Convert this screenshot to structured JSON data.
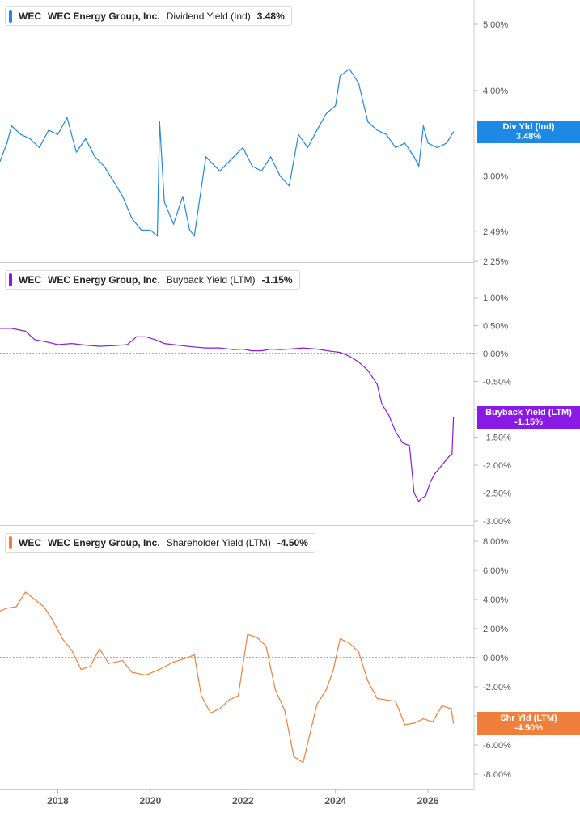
{
  "colors": {
    "dividend": "#1e88e5",
    "buyback": "#8a19e6",
    "shareholder": "#f07f3c",
    "grid": "#e6e6e6",
    "axis_text": "#555555"
  },
  "chart_data": [
    {
      "type": "line",
      "legend": {
        "ticker": "WEC",
        "name": "WEC Energy Group, Inc.",
        "metric": "Dividend Yield (Ind)",
        "value": "3.48%"
      },
      "tag": {
        "label": "Div Yld (Ind)",
        "value": "3.48%"
      },
      "y_ticks": [
        "5.00%",
        "4.00%",
        "3.00%",
        "2.49%",
        "2.25%"
      ],
      "y_tick_values": [
        5.0,
        4.0,
        3.0,
        2.49,
        2.25
      ],
      "scale": "log",
      "ylim": [
        2.25,
        5.5
      ],
      "xlim": [
        2016.75,
        2026.75
      ],
      "series": [
        {
          "x": [
            2016.75,
            2016.9,
            2017.0,
            2017.2,
            2017.4,
            2017.6,
            2017.8,
            2018.0,
            2018.2,
            2018.4,
            2018.6,
            2018.8,
            2019.0,
            2019.2,
            2019.4,
            2019.6,
            2019.8,
            2020.0,
            2020.15,
            2020.2,
            2020.3,
            2020.5,
            2020.7,
            2020.85,
            2020.95,
            2021.2,
            2021.5,
            2021.8,
            2022.0,
            2022.2,
            2022.4,
            2022.6,
            2022.8,
            2023.0,
            2023.2,
            2023.4,
            2023.6,
            2023.8,
            2024.0,
            2024.1,
            2024.3,
            2024.5,
            2024.7,
            2024.9,
            2025.1,
            2025.3,
            2025.5,
            2025.7,
            2025.8,
            2025.9,
            2026.0,
            2026.2,
            2026.4,
            2026.55
          ],
          "y": [
            3.15,
            3.35,
            3.55,
            3.45,
            3.4,
            3.3,
            3.5,
            3.45,
            3.65,
            3.25,
            3.4,
            3.2,
            3.1,
            2.95,
            2.8,
            2.6,
            2.5,
            2.5,
            2.45,
            3.6,
            2.75,
            2.55,
            2.8,
            2.5,
            2.45,
            3.2,
            3.05,
            3.2,
            3.3,
            3.1,
            3.05,
            3.2,
            3.0,
            2.9,
            3.45,
            3.3,
            3.5,
            3.7,
            3.8,
            4.2,
            4.3,
            4.1,
            3.6,
            3.5,
            3.45,
            3.3,
            3.35,
            3.2,
            3.1,
            3.55,
            3.35,
            3.3,
            3.35,
            3.48
          ]
        }
      ]
    },
    {
      "type": "line",
      "legend": {
        "ticker": "WEC",
        "name": "WEC Energy Group, Inc.",
        "metric": "Buyback Yield (LTM)",
        "value": "-1.15%"
      },
      "tag": {
        "label": "Buyback Yield (LTM)",
        "value": "-1.15%"
      },
      "y_ticks": [
        "1.00%",
        "0.50%",
        "0.00%",
        "-0.50%",
        "-1.00%",
        "-1.50%",
        "-2.00%",
        "-2.50%",
        "-3.00%"
      ],
      "y_tick_values": [
        1.0,
        0.5,
        0.0,
        -0.5,
        -1.0,
        -1.5,
        -2.0,
        -2.5,
        -3.0
      ],
      "ylim": [
        -3.0,
        1.0
      ],
      "xlim": [
        2016.75,
        2026.75
      ],
      "series": [
        {
          "x": [
            2016.75,
            2017.0,
            2017.3,
            2017.5,
            2017.8,
            2018.0,
            2018.3,
            2018.6,
            2018.9,
            2019.2,
            2019.5,
            2019.7,
            2019.9,
            2020.1,
            2020.3,
            2020.6,
            2020.9,
            2021.2,
            2021.5,
            2021.8,
            2022.0,
            2022.2,
            2022.4,
            2022.6,
            2022.8,
            2023.0,
            2023.3,
            2023.6,
            2023.9,
            2024.1,
            2024.3,
            2024.5,
            2024.7,
            2024.9,
            2025.0,
            2025.15,
            2025.3,
            2025.45,
            2025.6,
            2025.7,
            2025.8,
            2025.85,
            2025.95,
            2026.05,
            2026.15,
            2026.3,
            2026.45,
            2026.52,
            2026.55
          ],
          "y": [
            0.45,
            0.45,
            0.4,
            0.25,
            0.2,
            0.16,
            0.18,
            0.15,
            0.13,
            0.14,
            0.16,
            0.3,
            0.3,
            0.25,
            0.18,
            0.15,
            0.12,
            0.1,
            0.1,
            0.07,
            0.08,
            0.05,
            0.05,
            0.08,
            0.07,
            0.08,
            0.1,
            0.08,
            0.04,
            0.02,
            -0.05,
            -0.15,
            -0.3,
            -0.55,
            -0.9,
            -1.1,
            -1.4,
            -1.6,
            -1.65,
            -2.5,
            -2.65,
            -2.6,
            -2.55,
            -2.3,
            -2.15,
            -2.0,
            -1.85,
            -1.8,
            -1.15
          ]
        }
      ]
    },
    {
      "type": "line",
      "legend": {
        "ticker": "WEC",
        "name": "WEC Energy Group, Inc.",
        "metric": "Shareholder Yield (LTM)",
        "value": "-4.50%"
      },
      "tag": {
        "label": "Shr Yld (LTM)",
        "value": "-4.50%"
      },
      "y_ticks": [
        "8.00%",
        "6.00%",
        "4.00%",
        "2.00%",
        "0.00%",
        "-2.00%",
        "-4.00%",
        "-6.00%",
        "-8.00%"
      ],
      "y_tick_values": [
        8.0,
        6.0,
        4.0,
        2.0,
        0.0,
        -2.0,
        -4.0,
        -6.0,
        -8.0
      ],
      "ylim": [
        -8.0,
        8.0
      ],
      "xlim": [
        2016.75,
        2026.75
      ],
      "series": [
        {
          "x": [
            2016.75,
            2016.9,
            2017.1,
            2017.3,
            2017.5,
            2017.7,
            2017.9,
            2018.1,
            2018.3,
            2018.5,
            2018.7,
            2018.9,
            2019.1,
            2019.4,
            2019.6,
            2019.9,
            2020.2,
            2020.5,
            2020.8,
            2020.95,
            2021.1,
            2021.3,
            2021.5,
            2021.7,
            2021.9,
            2022.1,
            2022.3,
            2022.5,
            2022.7,
            2022.9,
            2023.1,
            2023.3,
            2023.6,
            2023.8,
            2023.95,
            2024.1,
            2024.3,
            2024.5,
            2024.7,
            2024.9,
            2025.1,
            2025.3,
            2025.5,
            2025.7,
            2025.9,
            2026.1,
            2026.3,
            2026.5,
            2026.55
          ],
          "y": [
            3.2,
            3.4,
            3.5,
            4.5,
            4.0,
            3.5,
            2.5,
            1.3,
            0.5,
            -0.8,
            -0.6,
            0.6,
            -0.4,
            -0.2,
            -1.0,
            -1.2,
            -0.8,
            -0.3,
            0.0,
            0.2,
            -2.6,
            -3.8,
            -3.5,
            -2.9,
            -2.6,
            1.6,
            1.4,
            0.8,
            -2.2,
            -3.6,
            -6.8,
            -7.2,
            -3.2,
            -2.2,
            -0.9,
            1.3,
            1.0,
            0.4,
            -1.6,
            -2.8,
            -2.9,
            -3.0,
            -4.6,
            -4.5,
            -4.2,
            -4.4,
            -3.3,
            -3.5,
            -4.5
          ]
        }
      ]
    }
  ],
  "x_axis": {
    "ticks": [
      "2018",
      "2020",
      "2022",
      "2024",
      "2026"
    ],
    "tick_values": [
      2018,
      2020,
      2022,
      2024,
      2026
    ]
  }
}
